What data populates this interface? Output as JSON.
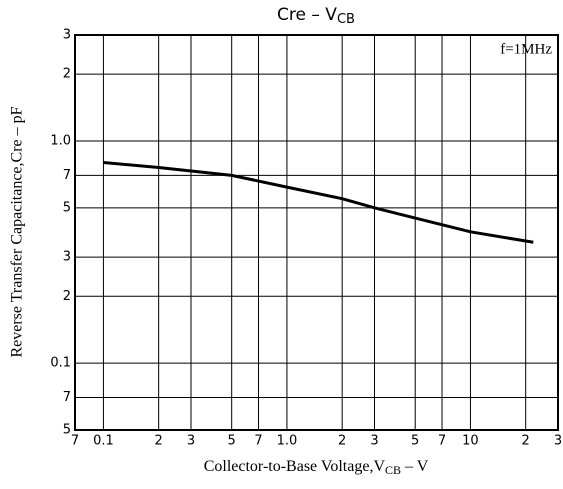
{
  "chart_data": {
    "type": "line",
    "title": "Cre  –  V",
    "title_subscript": "CB",
    "annotation": "f=1MHz",
    "xlabel": [
      "Collector-to-Base Voltage,V",
      "CB",
      " – V"
    ],
    "ylabel": "Reverse Transfer Capacitance,Cre – pF",
    "xscale": "log",
    "yscale": "log",
    "grid": true,
    "color": "#000000",
    "x": [
      0.1,
      0.2,
      0.5,
      1,
      2,
      3,
      5,
      10,
      22
    ],
    "values": [
      0.8,
      0.76,
      0.7,
      0.62,
      0.55,
      0.5,
      0.45,
      0.39,
      0.35
    ],
    "xlim": [
      0.07,
      30
    ],
    "xticks": [
      {
        "value": 0.07,
        "label": "7"
      },
      0.1,
      {
        "value": 0.2,
        "label": "2"
      },
      {
        "value": 0.3,
        "label": "3"
      },
      {
        "value": 0.5,
        "label": "5"
      },
      {
        "value": 0.7,
        "label": "7"
      },
      {
        "value": 1,
        "label": "1.0"
      },
      2,
      3,
      5,
      7,
      10,
      {
        "value": 20,
        "label": "2"
      },
      {
        "value": 30,
        "label": "3"
      }
    ],
    "ylim": [
      0.05,
      3
    ],
    "yticks": [
      3,
      2,
      {
        "value": 1,
        "label": "1.0"
      },
      {
        "value": 0.7,
        "label": "7"
      },
      {
        "value": 0.5,
        "label": "5"
      },
      {
        "value": 0.3,
        "label": "3"
      },
      {
        "value": 0.2,
        "label": "2"
      },
      0.1,
      {
        "value": 0.07,
        "label": "7"
      },
      {
        "value": 0.05,
        "label": "5"
      }
    ]
  }
}
